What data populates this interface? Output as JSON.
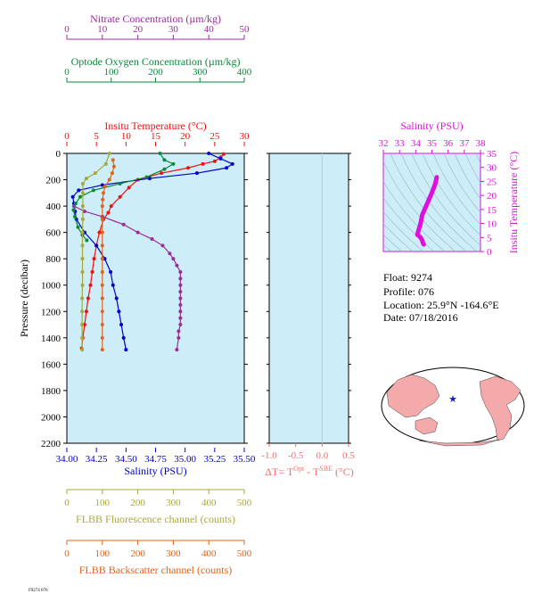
{
  "footer_id": "F9274 076",
  "float_info": {
    "float_label": "Float:",
    "float_value": "9274",
    "profile_label": "Profile:",
    "profile_value": "076",
    "location_label": "Location:",
    "location_value": "25.9°N  -164.6°E",
    "date_label": "Date:",
    "date_value": "07/18/2016"
  },
  "colors": {
    "panel_bg": "#cdeef8",
    "temperature": "#ee1111",
    "salinity": "#0000cc",
    "nitrate": "#9b2c9b",
    "oxygen": "#0a8a3a",
    "fluorescence": "#a8a83a",
    "backscatter": "#e0641a",
    "ts_axes": "#dd10dd",
    "delta_t": "#ff6a6a"
  },
  "chart_data": [
    {
      "type": "line",
      "y_axis": {
        "label": "Pressure (decibar)",
        "range": [
          0,
          2200
        ],
        "ticks": [
          "0",
          "200",
          "400",
          "600",
          "800",
          "1000",
          "1200",
          "1400",
          "1600",
          "1800",
          "2000",
          "2200"
        ]
      },
      "axes": [
        {
          "key": "nitrate",
          "label": "Nitrate Concentration (µm/kg)",
          "range": [
            0,
            50
          ],
          "ticks": [
            "0",
            "10",
            "20",
            "30",
            "40",
            "50"
          ]
        },
        {
          "key": "oxygen",
          "label": "Optode Oxygen Concentration (µm/kg)",
          "range": [
            0,
            400
          ],
          "ticks": [
            "0",
            "100",
            "200",
            "300",
            "400"
          ]
        },
        {
          "key": "temperature",
          "label": "Insitu Temperature (°C)",
          "range": [
            0,
            30
          ],
          "ticks": [
            "0",
            "5",
            "10",
            "15",
            "20",
            "25",
            "30"
          ]
        },
        {
          "key": "salinity",
          "label": "Salinity (PSU)",
          "range": [
            34.0,
            35.5
          ],
          "ticks": [
            "34.00",
            "34.25",
            "34.50",
            "34.75",
            "35.00",
            "35.25",
            "35.50"
          ]
        },
        {
          "key": "fluorescence",
          "label": "FLBB Fluorescence channel (counts)",
          "range": [
            0,
            500
          ],
          "ticks": [
            "0",
            "100",
            "200",
            "300",
            "400",
            "500"
          ]
        },
        {
          "key": "backscatter",
          "label": "FLBB Backscatter channel (counts)",
          "range": [
            0,
            500
          ],
          "ticks": [
            "0",
            "100",
            "200",
            "300",
            "400",
            "500"
          ]
        }
      ],
      "series": [
        {
          "key": "temperature",
          "values": [
            [
              26.5,
              5
            ],
            [
              26,
              30
            ],
            [
              25,
              60
            ],
            [
              23,
              80
            ],
            [
              20.5,
              110
            ],
            [
              16,
              150
            ],
            [
              12,
              200
            ],
            [
              10.5,
              260
            ],
            [
              9,
              330
            ],
            [
              7.5,
              400
            ],
            [
              7,
              450
            ],
            [
              6.2,
              500
            ],
            [
              5.5,
              600
            ],
            [
              5,
              700
            ],
            [
              4.6,
              800
            ],
            [
              4.3,
              900
            ],
            [
              4.0,
              1000
            ],
            [
              3.6,
              1100
            ],
            [
              3.3,
              1200
            ],
            [
              3.0,
              1300
            ],
            [
              2.7,
              1400
            ],
            [
              2.5,
              1480
            ]
          ]
        },
        {
          "key": "salinity",
          "values": [
            [
              35.2,
              0
            ],
            [
              35.3,
              40
            ],
            [
              35.4,
              80
            ],
            [
              35.35,
              110
            ],
            [
              35.1,
              150
            ],
            [
              34.7,
              190
            ],
            [
              34.3,
              240
            ],
            [
              34.1,
              280
            ],
            [
              34.05,
              330
            ],
            [
              34.06,
              380
            ],
            [
              34.07,
              440
            ],
            [
              34.08,
              500
            ],
            [
              34.15,
              600
            ],
            [
              34.25,
              700
            ],
            [
              34.32,
              800
            ],
            [
              34.37,
              900
            ],
            [
              34.39,
              1000
            ],
            [
              34.42,
              1100
            ],
            [
              34.44,
              1200
            ],
            [
              34.46,
              1300
            ],
            [
              34.48,
              1400
            ],
            [
              34.5,
              1490
            ]
          ]
        },
        {
          "key": "nitrate",
          "values": [
            [
              2,
              400
            ],
            [
              5,
              440
            ],
            [
              10,
              480
            ],
            [
              16,
              540
            ],
            [
              20,
              600
            ],
            [
              24,
              650
            ],
            [
              27,
              700
            ],
            [
              29,
              760
            ],
            [
              30,
              800
            ],
            [
              31,
              850
            ],
            [
              32,
              900
            ],
            [
              32,
              950
            ],
            [
              32,
              1000
            ],
            [
              32,
              1050
            ],
            [
              32,
              1100
            ],
            [
              32,
              1150
            ],
            [
              32,
              1200
            ],
            [
              32,
              1250
            ],
            [
              32,
              1300
            ],
            [
              31.5,
              1350
            ],
            [
              31.5,
              1400
            ],
            [
              31,
              1490
            ]
          ]
        },
        {
          "key": "oxygen",
          "values": [
            [
              210,
              0
            ],
            [
              220,
              50
            ],
            [
              240,
              80
            ],
            [
              220,
              120
            ],
            [
              180,
              180
            ],
            [
              120,
              230
            ],
            [
              60,
              280
            ],
            [
              30,
              330
            ],
            [
              20,
              380
            ],
            [
              15,
              430
            ],
            [
              18,
              480
            ],
            [
              25,
              560
            ],
            [
              35,
              620
            ],
            [
              45,
              660
            ]
          ]
        },
        {
          "key": "fluorescence",
          "values": [
            [
              120,
              0
            ],
            [
              110,
              80
            ],
            [
              80,
              150
            ],
            [
              55,
              190
            ],
            [
              45,
              230
            ],
            [
              45,
              300
            ],
            [
              45,
              400
            ],
            [
              45,
              500
            ],
            [
              44,
              600
            ],
            [
              44,
              700
            ],
            [
              44,
              800
            ],
            [
              44,
              900
            ],
            [
              44,
              1000
            ],
            [
              43,
              1100
            ],
            [
              43,
              1200
            ],
            [
              43,
              1300
            ],
            [
              43,
              1400
            ],
            [
              43,
              1490
            ]
          ]
        },
        {
          "key": "backscatter",
          "values": [
            [
              130,
              50
            ],
            [
              133,
              100
            ],
            [
              128,
              150
            ],
            [
              120,
              200
            ],
            [
              108,
              250
            ],
            [
              103,
              300
            ],
            [
              101,
              350
            ],
            [
              100,
              400
            ],
            [
              100,
              500
            ],
            [
              100,
              600
            ],
            [
              100,
              700
            ],
            [
              100,
              800
            ],
            [
              100,
              900
            ],
            [
              100,
              1000
            ],
            [
              100,
              1100
            ],
            [
              100,
              1200
            ],
            [
              100,
              1300
            ],
            [
              100,
              1400
            ],
            [
              100,
              1490
            ]
          ]
        }
      ]
    },
    {
      "type": "line",
      "x_axis": {
        "label": "ΔT= T^Opt - T^SBE (°C)",
        "range": [
          -1.0,
          0.5
        ],
        "ticks": [
          "-1.0",
          "-0.5",
          "0.0",
          "0.5"
        ]
      },
      "y_axis": {
        "range": [
          0,
          2200
        ]
      },
      "series": []
    },
    {
      "type": "line",
      "x_axis": {
        "label": "Salinity (PSU)",
        "range": [
          32,
          38
        ],
        "ticks": [
          "32",
          "33",
          "34",
          "35",
          "36",
          "37",
          "38"
        ]
      },
      "y_axis": {
        "label": "Insitu Temperature (°C)",
        "range": [
          0,
          35
        ],
        "ticks": [
          "0",
          "5",
          "10",
          "15",
          "20",
          "25",
          "30",
          "35"
        ]
      },
      "series": [
        {
          "key": "ts",
          "values": [
            [
              35.3,
              26.5
            ],
            [
              35.2,
              24
            ],
            [
              35.0,
              21
            ],
            [
              34.7,
              17
            ],
            [
              34.4,
              13
            ],
            [
              34.3,
              10
            ],
            [
              34.2,
              8
            ],
            [
              34.1,
              6
            ],
            [
              34.3,
              5
            ],
            [
              34.4,
              4
            ],
            [
              34.45,
              3
            ],
            [
              34.5,
              2.5
            ]
          ]
        }
      ]
    }
  ]
}
